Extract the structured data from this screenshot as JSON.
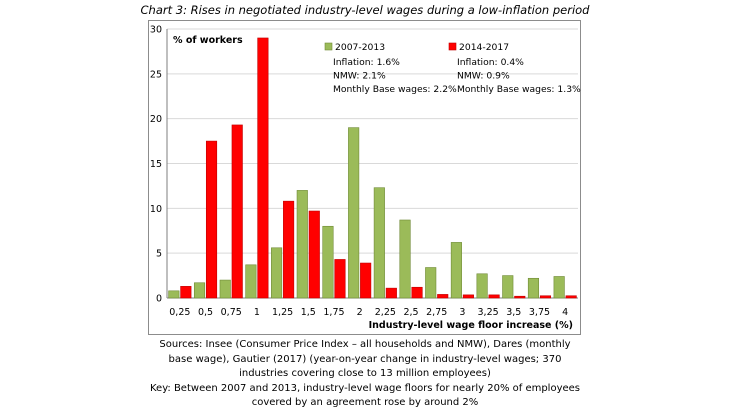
{
  "title": "Chart 3: Rises in negotiated industry-level wages during a low-inflation period",
  "sources": "Sources: Insee (Consumer Price Index – all households and NMW), Dares (monthly base wage), Gautier (2017) (year-on-year change in industry-level wages; 370 industries covering close to 13 million employees)",
  "key": "Key: Between 2007 and 2013, industry-level wage floors for nearly 20% of employees covered by an agreement rose by around 2%",
  "colors": {
    "series_2007_2013": "#9bbb59",
    "series_2014_2017": "#ff0000"
  },
  "chart_data": {
    "type": "bar",
    "ylabel": "% of workers",
    "xlabel": "Industry-level wage floor increase (%)",
    "ylim": [
      0,
      30
    ],
    "yticks": [
      0,
      5,
      10,
      15,
      20,
      25,
      30
    ],
    "grid": true,
    "legend_position": "top-right",
    "categories": [
      "0,25",
      "0,5",
      "0,75",
      "1",
      "1,25",
      "1,5",
      "1,75",
      "2",
      "2,25",
      "2,5",
      "2,75",
      "3",
      "3,25",
      "3,5",
      "3,75",
      "4"
    ],
    "series": [
      {
        "name": "2007-2013",
        "color": "#9bbb59",
        "legend_lines": [
          "Inflation: 1.6%",
          "NMW: 2.1%",
          "Monthly Base wages: 2.2%"
        ],
        "values": [
          0.8,
          1.7,
          2.0,
          3.7,
          5.6,
          12.0,
          8.0,
          19.0,
          12.3,
          8.7,
          3.4,
          6.2,
          2.7,
          2.5,
          2.2,
          2.4
        ]
      },
      {
        "name": "2014-2017",
        "color": "#ff0000",
        "legend_lines": [
          "Inflation: 0.4%",
          "NMW: 0.9%",
          "Monthly Base wages: 1.3%"
        ],
        "values": [
          1.3,
          17.5,
          19.3,
          29.0,
          10.8,
          9.7,
          4.3,
          3.9,
          1.1,
          1.2,
          0.4,
          0.35,
          0.35,
          0.2,
          0.25,
          0.25
        ]
      }
    ]
  }
}
